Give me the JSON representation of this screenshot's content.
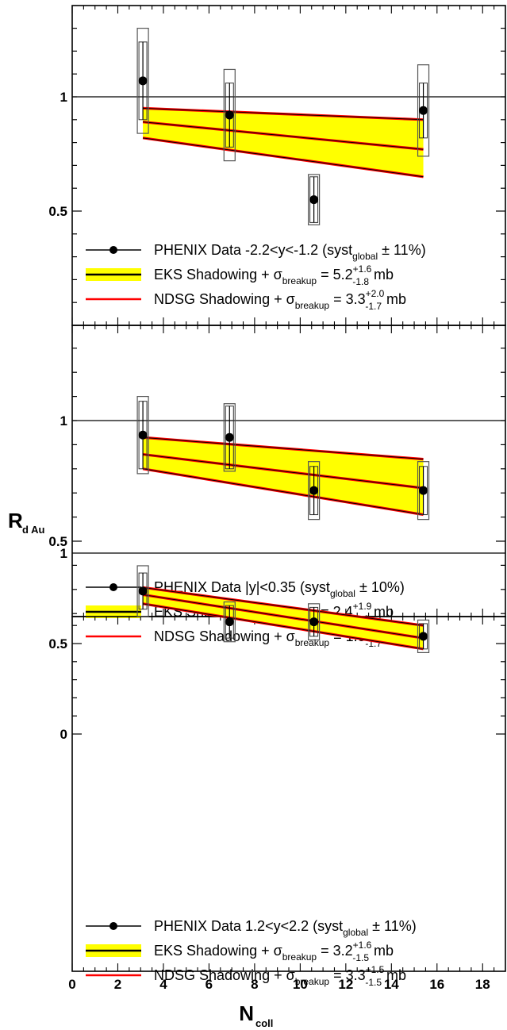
{
  "chart_data": [
    {
      "type": "scatter",
      "panel": "top",
      "ylim": [
        0.3,
        1.3
      ],
      "yticks": [
        {
          "value": 0.5,
          "label": "0.5"
        },
        {
          "value": 1,
          "label": "1"
        }
      ],
      "reference_line": 1,
      "series": [
        {
          "name": "PHENIX Data -2.2<y<-1.2",
          "x": [
            3.1,
            6.9,
            10.6,
            15.4
          ],
          "y": [
            1.07,
            0.92,
            0.55,
            0.94
          ],
          "stat_err": [
            0.17,
            0.14,
            0.1,
            0.12
          ],
          "syst_err": [
            0.23,
            0.2,
            0.11,
            0.2
          ]
        },
        {
          "name": "EKS Shadowing",
          "band_x": [
            3.1,
            15.4
          ],
          "central": [
            0.89,
            0.77
          ],
          "upper": [
            0.95,
            0.9
          ],
          "lower": [
            0.82,
            0.65
          ]
        }
      ],
      "legend": [
        {
          "kind": "marker",
          "pre": "PHENIX Data -2.2<y<-1.2 (syst",
          "sub": "global",
          "post": " ± 11%)"
        },
        {
          "kind": "band",
          "pre": "EKS Shadowing + σ",
          "sub": "breakup",
          "value": " = 5.2",
          "sup_err": "+1.6",
          "sub_err": "-1.8",
          "unit": "mb"
        },
        {
          "kind": "line",
          "pre": "NDSG Shadowing + σ",
          "sub": "breakup",
          "value": " = 3.3",
          "sup_err": "+2.0",
          "sub_err": "-1.7",
          "unit": "mb"
        }
      ]
    },
    {
      "type": "scatter",
      "panel": "middle",
      "ylim": [
        0.3,
        1.3
      ],
      "yticks": [
        {
          "value": 0.5,
          "label": "0.5"
        },
        {
          "value": 1,
          "label": "1"
        }
      ],
      "reference_line": 1,
      "series": [
        {
          "name": "PHENIX Data |y|<0.35",
          "x": [
            3.1,
            6.9,
            10.6,
            15.4
          ],
          "y": [
            0.94,
            0.93,
            0.71,
            0.71
          ],
          "stat_err": [
            0.14,
            0.13,
            0.1,
            0.1
          ],
          "syst_err": [
            0.16,
            0.14,
            0.12,
            0.12
          ]
        },
        {
          "name": "EKS Shadowing",
          "band_x": [
            3.1,
            15.4
          ],
          "central": [
            0.86,
            0.72
          ],
          "upper": [
            0.93,
            0.84
          ],
          "lower": [
            0.8,
            0.61
          ]
        }
      ],
      "legend": [
        {
          "kind": "marker",
          "pre": "PHENIX Data |y|<0.35 (syst",
          "sub": "global",
          "post": " ± 10%)"
        },
        {
          "kind": "band",
          "pre": "EKS Shadowing + σ",
          "sub": "breakup",
          "value": " = 2.4",
          "sup_err": "+1.9",
          "sub_err": "-1.6",
          "unit": "mb"
        },
        {
          "kind": "line",
          "pre": "NDSG Shadowing + σ",
          "sub": "breakup",
          "value": " = 1.0",
          "sup_err": "+1.8",
          "sub_err": "-1.7",
          "unit": "mb"
        }
      ]
    },
    {
      "type": "scatter",
      "panel": "bottom",
      "ylim": [
        0,
        1.3
      ],
      "yticks": [
        {
          "value": 0,
          "label": "0"
        },
        {
          "value": 0.5,
          "label": "0.5"
        },
        {
          "value": 1,
          "label": "1"
        }
      ],
      "reference_line": 1,
      "series": [
        {
          "name": "PHENIX Data 1.2<y<2.2",
          "x": [
            3.1,
            6.9,
            10.6,
            15.4
          ],
          "y": [
            0.79,
            0.62,
            0.62,
            0.54
          ],
          "stat_err": [
            0.1,
            0.09,
            0.08,
            0.07
          ],
          "syst_err": [
            0.14,
            0.11,
            0.1,
            0.09
          ]
        },
        {
          "name": "EKS Shadowing",
          "band_x": [
            3.1,
            15.4
          ],
          "central": [
            0.77,
            0.53
          ],
          "upper": [
            0.81,
            0.6
          ],
          "lower": [
            0.72,
            0.47
          ]
        }
      ],
      "legend": [
        {
          "kind": "marker",
          "pre": "PHENIX Data 1.2<y<2.2 (syst",
          "sub": "global",
          "post": " ± 11%)"
        },
        {
          "kind": "band",
          "pre": "EKS Shadowing + σ",
          "sub": "breakup",
          "value": " = 3.2",
          "sup_err": "+1.6",
          "sub_err": "-1.5",
          "unit": "mb"
        },
        {
          "kind": "line",
          "pre": "NDSG Shadowing + σ",
          "sub": "breakup",
          "value": " = 3.3",
          "sup_err": "+1.5",
          "sub_err": "-1.5",
          "unit": "mb"
        }
      ]
    }
  ],
  "axes": {
    "xlim": [
      0,
      19
    ],
    "xticks": [
      "0",
      "2",
      "4",
      "6",
      "8",
      "10",
      "12",
      "14",
      "16",
      "18"
    ],
    "xlabel_main": "N",
    "xlabel_sub": "coll",
    "ylabel_main": "R",
    "ylabel_sub": "d Au"
  },
  "colors": {
    "band_fill": "#ffff00",
    "band_edge": "#ff0000",
    "central_line": "#000000",
    "data_marker": "#000000",
    "reference_line": "#000000"
  }
}
